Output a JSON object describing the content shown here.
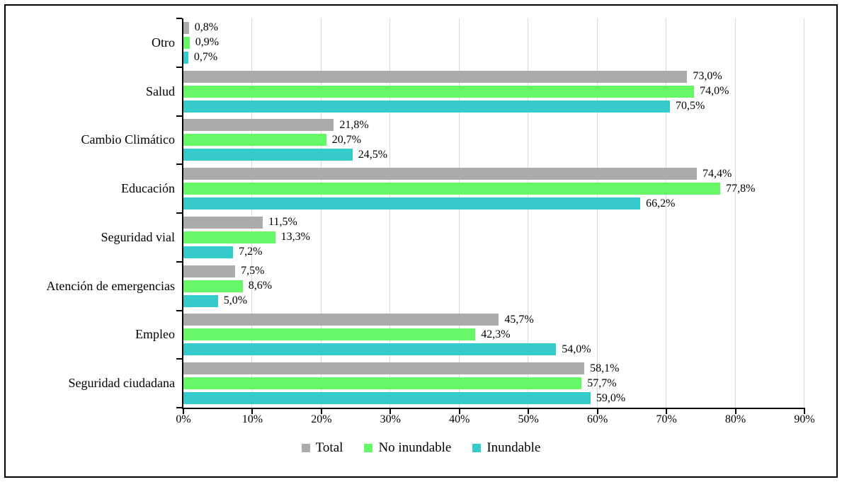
{
  "chart_data": {
    "type": "bar",
    "orientation": "horizontal",
    "title": "",
    "xlabel": "",
    "ylabel": "",
    "xlim": [
      0,
      90
    ],
    "x_ticks": [
      "0%",
      "10%",
      "20%",
      "30%",
      "40%",
      "50%",
      "60%",
      "70%",
      "80%",
      "90%"
    ],
    "grid": "vertical",
    "gridline_color": "#d9d9d9",
    "axis_color": "#000000",
    "legend_position": "bottom",
    "categories": [
      "Otro",
      "Salud",
      "Cambio Climático",
      "Educación",
      "Seguridad vial",
      "Atención de emergencias",
      "Empleo",
      "Seguridad ciudadana"
    ],
    "series": [
      {
        "name": "Total",
        "color": "#ababab",
        "values": [
          0.8,
          73.0,
          21.8,
          74.4,
          11.5,
          7.5,
          45.7,
          58.1
        ],
        "labels": [
          "0,8%",
          "73,0%",
          "21,8%",
          "74,4%",
          "11,5%",
          "7,5%",
          "45,7%",
          "58,1%"
        ]
      },
      {
        "name": "No inundable",
        "color": "#66f766",
        "values": [
          0.9,
          74.0,
          20.7,
          77.8,
          13.3,
          8.6,
          42.3,
          57.7
        ],
        "labels": [
          "0,9%",
          "74,0%",
          "20,7%",
          "77,8%",
          "13,3%",
          "8,6%",
          "42,3%",
          "57,7%"
        ]
      },
      {
        "name": "Inundable",
        "color": "#35cbcb",
        "values": [
          0.7,
          70.5,
          24.5,
          66.2,
          7.2,
          5.0,
          54.0,
          59.0
        ],
        "labels": [
          "0,7%",
          "70,5%",
          "24,5%",
          "66,2%",
          "7,2%",
          "5,0%",
          "54,0%",
          "59,0%"
        ]
      }
    ]
  }
}
